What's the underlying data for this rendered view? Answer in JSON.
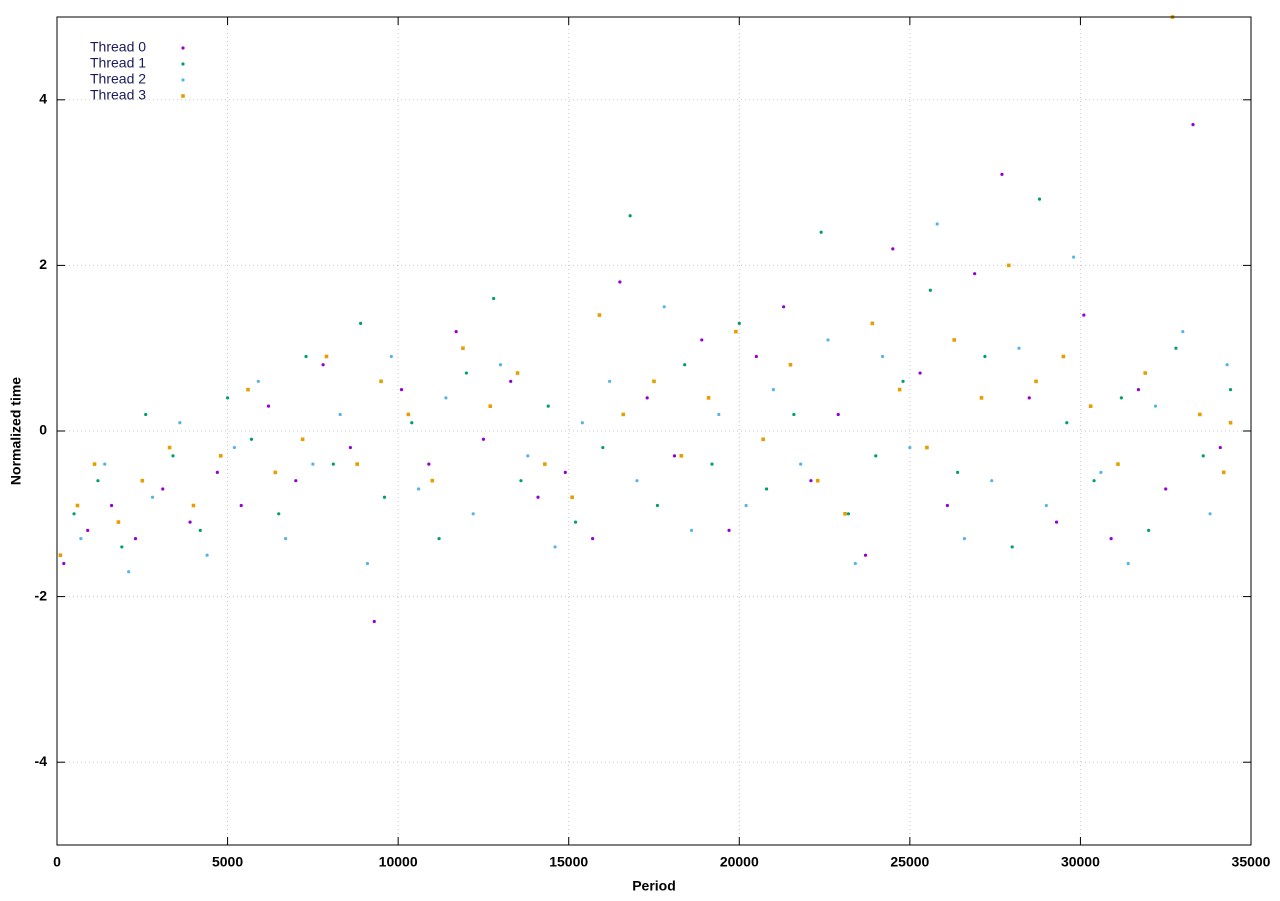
{
  "chart_data": {
    "type": "scatter",
    "xlabel": "Period",
    "ylabel": "Normalized time",
    "xlim": [
      0,
      35000
    ],
    "xticks": [
      0,
      5000,
      10000,
      15000,
      20000,
      25000,
      30000,
      35000
    ],
    "ylim": [
      -5,
      5
    ],
    "yticks": [
      -4,
      -2,
      0,
      2,
      4
    ],
    "grid": true,
    "legend": "top-left",
    "series": [
      {
        "name": "Thread 0",
        "color": "#9400d3",
        "marker": "dot",
        "x": [
          200,
          900,
          1600,
          2300,
          3100,
          3900,
          4700,
          5400,
          6200,
          7000,
          7800,
          8600,
          9300,
          10100,
          10900,
          11700,
          12500,
          13300,
          14100,
          14900,
          15700,
          16500,
          17300,
          18100,
          18900,
          19700,
          20500,
          21300,
          22100,
          22900,
          23700,
          24500,
          25300,
          26100,
          26900,
          27700,
          28500,
          29300,
          30100,
          30900,
          31700,
          32500,
          33300,
          34100
        ],
        "values": [
          -1.6,
          -1.2,
          -0.9,
          -1.3,
          -0.7,
          -1.1,
          -0.5,
          -0.9,
          0.3,
          -0.6,
          0.8,
          -0.2,
          -2.3,
          0.5,
          -0.4,
          1.2,
          -0.1,
          0.6,
          -0.8,
          -0.5,
          -1.3,
          1.8,
          0.4,
          -0.3,
          1.1,
          -1.2,
          0.9,
          1.5,
          -0.6,
          0.2,
          -1.5,
          2.2,
          0.7,
          -0.9,
          1.9,
          3.1,
          0.4,
          -1.1,
          1.4,
          -1.3,
          0.5,
          -0.7,
          3.7,
          -0.2
        ]
      },
      {
        "name": "Thread 1",
        "color": "#009e73",
        "marker": "dot",
        "x": [
          500,
          1200,
          1900,
          2600,
          3400,
          4200,
          5000,
          5700,
          6500,
          7300,
          8100,
          8900,
          9600,
          10400,
          11200,
          12000,
          12800,
          13600,
          14400,
          15200,
          16000,
          16800,
          17600,
          18400,
          19200,
          20000,
          20800,
          21600,
          22400,
          23200,
          24000,
          24800,
          25600,
          26400,
          27200,
          28000,
          28800,
          29600,
          30400,
          31200,
          32000,
          32800,
          33600,
          34400
        ],
        "values": [
          -1.0,
          -0.6,
          -1.4,
          0.2,
          -0.3,
          -1.2,
          0.4,
          -0.1,
          -1.0,
          0.9,
          -0.4,
          1.3,
          -0.8,
          0.1,
          -1.3,
          0.7,
          1.6,
          -0.6,
          0.3,
          -1.1,
          -0.2,
          2.6,
          -0.9,
          0.8,
          -0.4,
          1.3,
          -0.7,
          0.2,
          2.4,
          -1.0,
          -0.3,
          0.6,
          1.7,
          -0.5,
          0.9,
          -1.4,
          2.8,
          0.1,
          -0.6,
          0.4,
          -1.2,
          1.0,
          -0.3,
          0.5
        ]
      },
      {
        "name": "Thread 2",
        "color": "#56b4e9",
        "marker": "dot",
        "x": [
          700,
          1400,
          2100,
          2800,
          3600,
          4400,
          5200,
          5900,
          6700,
          7500,
          8300,
          9100,
          9800,
          10600,
          11400,
          12200,
          13000,
          13800,
          14600,
          15400,
          16200,
          17000,
          17800,
          18600,
          19400,
          20200,
          21000,
          21800,
          22600,
          23400,
          24200,
          25000,
          25800,
          26600,
          27400,
          28200,
          29000,
          29800,
          30600,
          31400,
          32200,
          33000,
          33800,
          34300
        ],
        "values": [
          -1.3,
          -0.4,
          -1.7,
          -0.8,
          0.1,
          -1.5,
          -0.2,
          0.6,
          -1.3,
          -0.4,
          0.2,
          -1.6,
          0.9,
          -0.7,
          0.4,
          -1.0,
          0.8,
          -0.3,
          -1.4,
          0.1,
          0.6,
          -0.6,
          1.5,
          -1.2,
          0.2,
          -0.9,
          0.5,
          -0.4,
          1.1,
          -1.6,
          0.9,
          -0.2,
          2.5,
          -1.3,
          -0.6,
          1.0,
          -0.9,
          2.1,
          -0.5,
          -1.6,
          0.3,
          1.2,
          -1.0,
          0.8
        ]
      },
      {
        "name": "Thread 3",
        "color": "#e69f00",
        "marker": "square",
        "x": [
          100,
          600,
          1100,
          1800,
          2500,
          3300,
          4000,
          4800,
          5600,
          6400,
          7200,
          7900,
          8800,
          9500,
          10300,
          11000,
          11900,
          12700,
          13500,
          14300,
          15100,
          15900,
          16600,
          17500,
          18300,
          19100,
          19900,
          20700,
          21500,
          22300,
          23100,
          23900,
          24700,
          25500,
          26300,
          27100,
          27900,
          28700,
          29500,
          30300,
          31100,
          31900,
          32700,
          33500,
          34200,
          34400
        ],
        "values": [
          -1.5,
          -0.9,
          -0.4,
          -1.1,
          -0.6,
          -0.2,
          -0.9,
          -0.3,
          0.5,
          -0.5,
          -0.1,
          0.9,
          -0.4,
          0.6,
          0.2,
          -0.6,
          1.0,
          0.3,
          0.7,
          -0.4,
          -0.8,
          1.4,
          0.2,
          0.6,
          -0.3,
          0.4,
          1.2,
          -0.1,
          0.8,
          -0.6,
          -1.0,
          1.3,
          0.5,
          -0.2,
          1.1,
          0.4,
          2.0,
          0.6,
          0.9,
          0.3,
          -0.4,
          0.7,
          5.0,
          0.2,
          -0.5,
          0.1
        ]
      }
    ]
  }
}
